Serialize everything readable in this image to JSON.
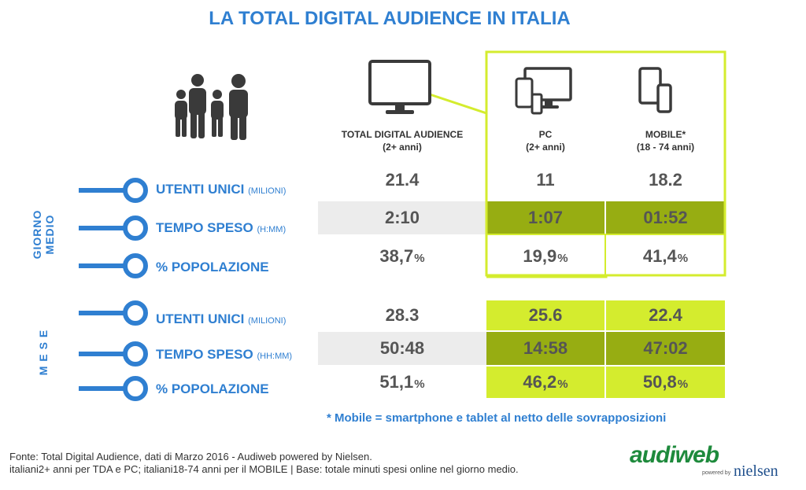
{
  "title": "LA TOTAL DIGITAL AUDIENCE IN ITALIA",
  "columns": [
    {
      "name": "TOTAL DIGITAL AUDIENCE",
      "sub": "(2+ anni)"
    },
    {
      "name": "PC",
      "sub": "(2+ anni)"
    },
    {
      "name": "MOBILE*",
      "sub": "(18 - 74 anni)"
    }
  ],
  "sections": [
    {
      "label": "GIORNO MEDIO",
      "rows": [
        {
          "label": "UTENTI UNICI",
          "unit": "(MILIONI)",
          "values": [
            "21.4",
            "11",
            "18.2"
          ],
          "suffix": ""
        },
        {
          "label": "TEMPO SPESO",
          "unit": "(H:MM)",
          "values": [
            "2:10",
            "1:07",
            "01:52"
          ],
          "suffix": ""
        },
        {
          "label": "% POPOLAZIONE",
          "unit": "",
          "values": [
            "38,7",
            "19,9",
            "41,4"
          ],
          "suffix": "%"
        }
      ]
    },
    {
      "label": "M E S E",
      "rows": [
        {
          "label": "UTENTI UNICI",
          "unit": "(MILIONI)",
          "values": [
            "28.3",
            "25.6",
            "22.4"
          ],
          "suffix": ""
        },
        {
          "label": "TEMPO SPESO",
          "unit": "(HH:MM)",
          "values": [
            "50:48",
            "14:58",
            "47:02"
          ],
          "suffix": ""
        },
        {
          "label": "% POPOLAZIONE",
          "unit": "",
          "values": [
            "51,1",
            "46,2",
            "50,8"
          ],
          "suffix": "%"
        }
      ]
    }
  ],
  "chart_data": {
    "type": "table",
    "title": "LA TOTAL DIGITAL AUDIENCE IN ITALIA",
    "columns": [
      "TOTAL DIGITAL AUDIENCE (2+ anni)",
      "PC (2+ anni)",
      "MOBILE* (18 - 74 anni)"
    ],
    "rows": [
      {
        "section": "GIORNO MEDIO",
        "metric": "UTENTI UNICI (MILIONI)",
        "values": [
          21.4,
          11,
          18.2
        ]
      },
      {
        "section": "GIORNO MEDIO",
        "metric": "TEMPO SPESO (H:MM)",
        "values": [
          "2:10",
          "1:07",
          "01:52"
        ]
      },
      {
        "section": "GIORNO MEDIO",
        "metric": "% POPOLAZIONE",
        "values": [
          38.7,
          19.9,
          41.4
        ]
      },
      {
        "section": "MESE",
        "metric": "UTENTI UNICI (MILIONI)",
        "values": [
          28.3,
          25.6,
          22.4
        ]
      },
      {
        "section": "MESE",
        "metric": "TEMPO SPESO (HH:MM)",
        "values": [
          "50:48",
          "14:58",
          "47:02"
        ]
      },
      {
        "section": "MESE",
        "metric": "% POPOLAZIONE",
        "values": [
          51.1,
          46.2,
          50.8
        ]
      }
    ]
  },
  "note": "* Mobile = smartphone e tablet al netto delle sovrapposizioni",
  "source": [
    "Fonte: Total Digital Audience, dati di Marzo 2016 - Audiweb powered by Nielsen.",
    "italiani2+ anni per TDA e PC; italiani18-74 anni per il MOBILE | Base: totale minuti spesi online nel giorno medio."
  ],
  "logo": {
    "brand": "audiweb",
    "powered": "powered by",
    "partner": "nielsen"
  },
  "colors": {
    "blue": "#2f7fd1",
    "lime": "#d4ec2e",
    "olive": "#97ad12",
    "grey": "#ececec",
    "text": "#555555"
  }
}
